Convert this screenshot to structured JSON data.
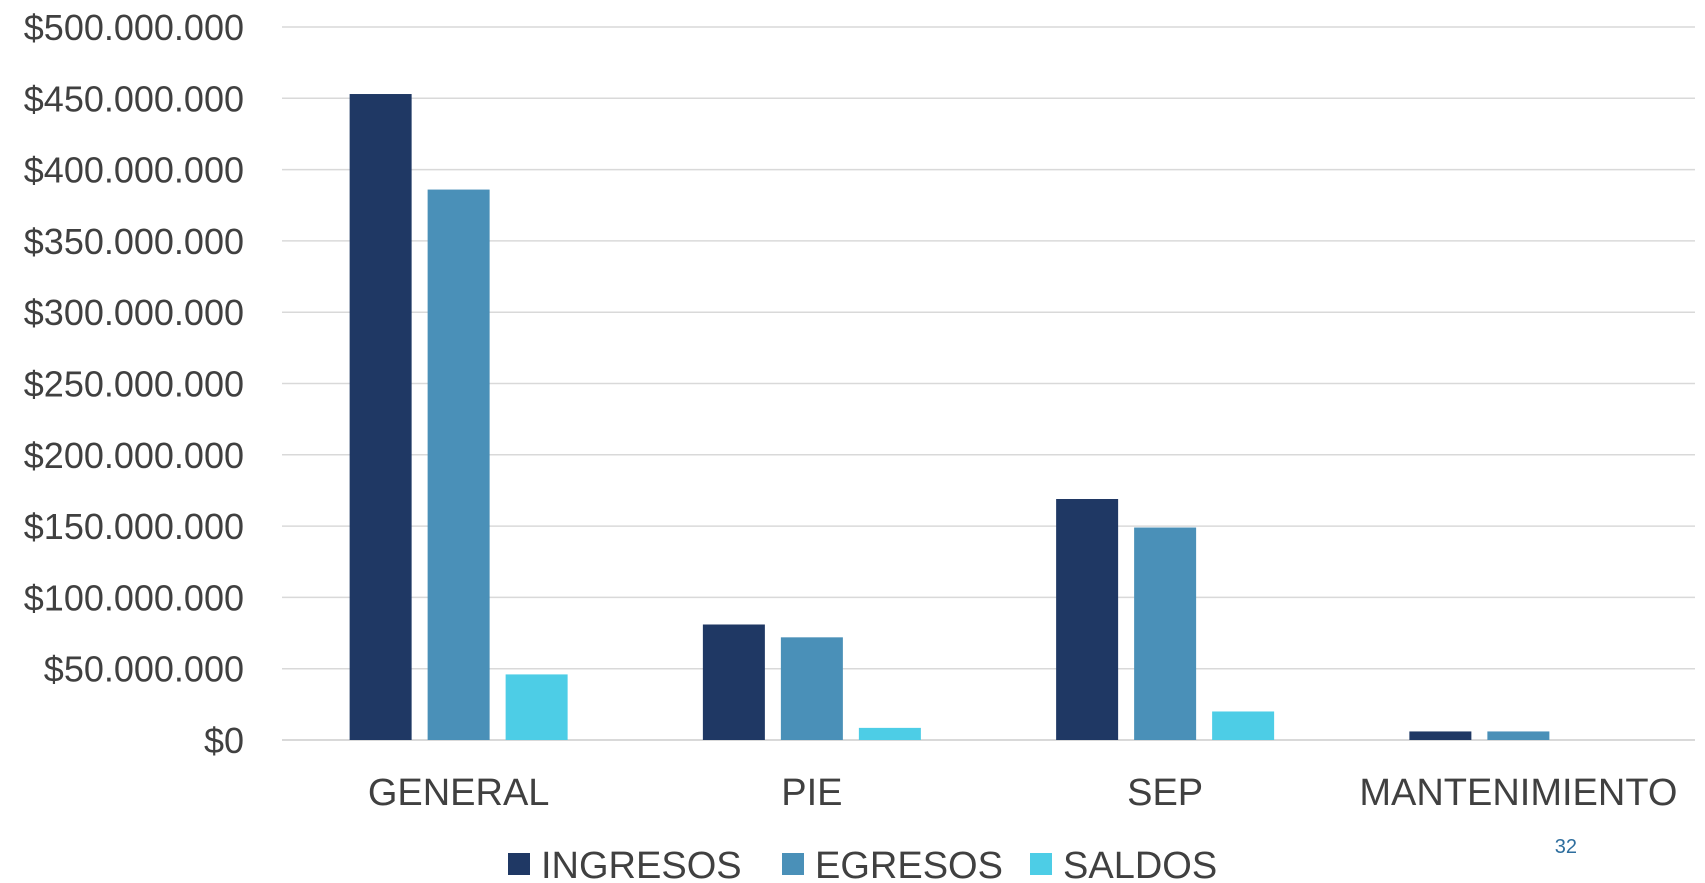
{
  "chart_data": {
    "type": "bar",
    "categories": [
      "GENERAL",
      "PIE",
      "SEP",
      "MANTENIMIENTO"
    ],
    "series": [
      {
        "name": "INGRESOS",
        "color": "#1f3864",
        "values": [
          453000000,
          81000000,
          169000000,
          6000000
        ]
      },
      {
        "name": "EGRESOS",
        "color": "#4a90b8",
        "values": [
          386000000,
          72000000,
          149000000,
          6000000
        ]
      },
      {
        "name": "SALDOS",
        "color": "#4dcde6",
        "values": [
          46000000,
          8500000,
          20000000,
          0
        ]
      }
    ],
    "ylim": [
      0,
      500000000
    ],
    "yticks": [
      0,
      50000000,
      100000000,
      150000000,
      200000000,
      250000000,
      300000000,
      350000000,
      400000000,
      450000000,
      500000000
    ],
    "ytick_labels": [
      "$0",
      "$50.000.000",
      "$100.000.000",
      "$150.000.000",
      "$200.000.000",
      "$250.000.000",
      "$300.000.000",
      "$350.000.000",
      "$400.000.000",
      "$450.000.000",
      "$500.000.000"
    ],
    "title": "",
    "xlabel": "",
    "ylabel": "",
    "grid": true,
    "legend_position": "bottom",
    "gridline_color": "#d9d9d9",
    "axis_color": "#d9d9d9"
  },
  "page_number": "32"
}
